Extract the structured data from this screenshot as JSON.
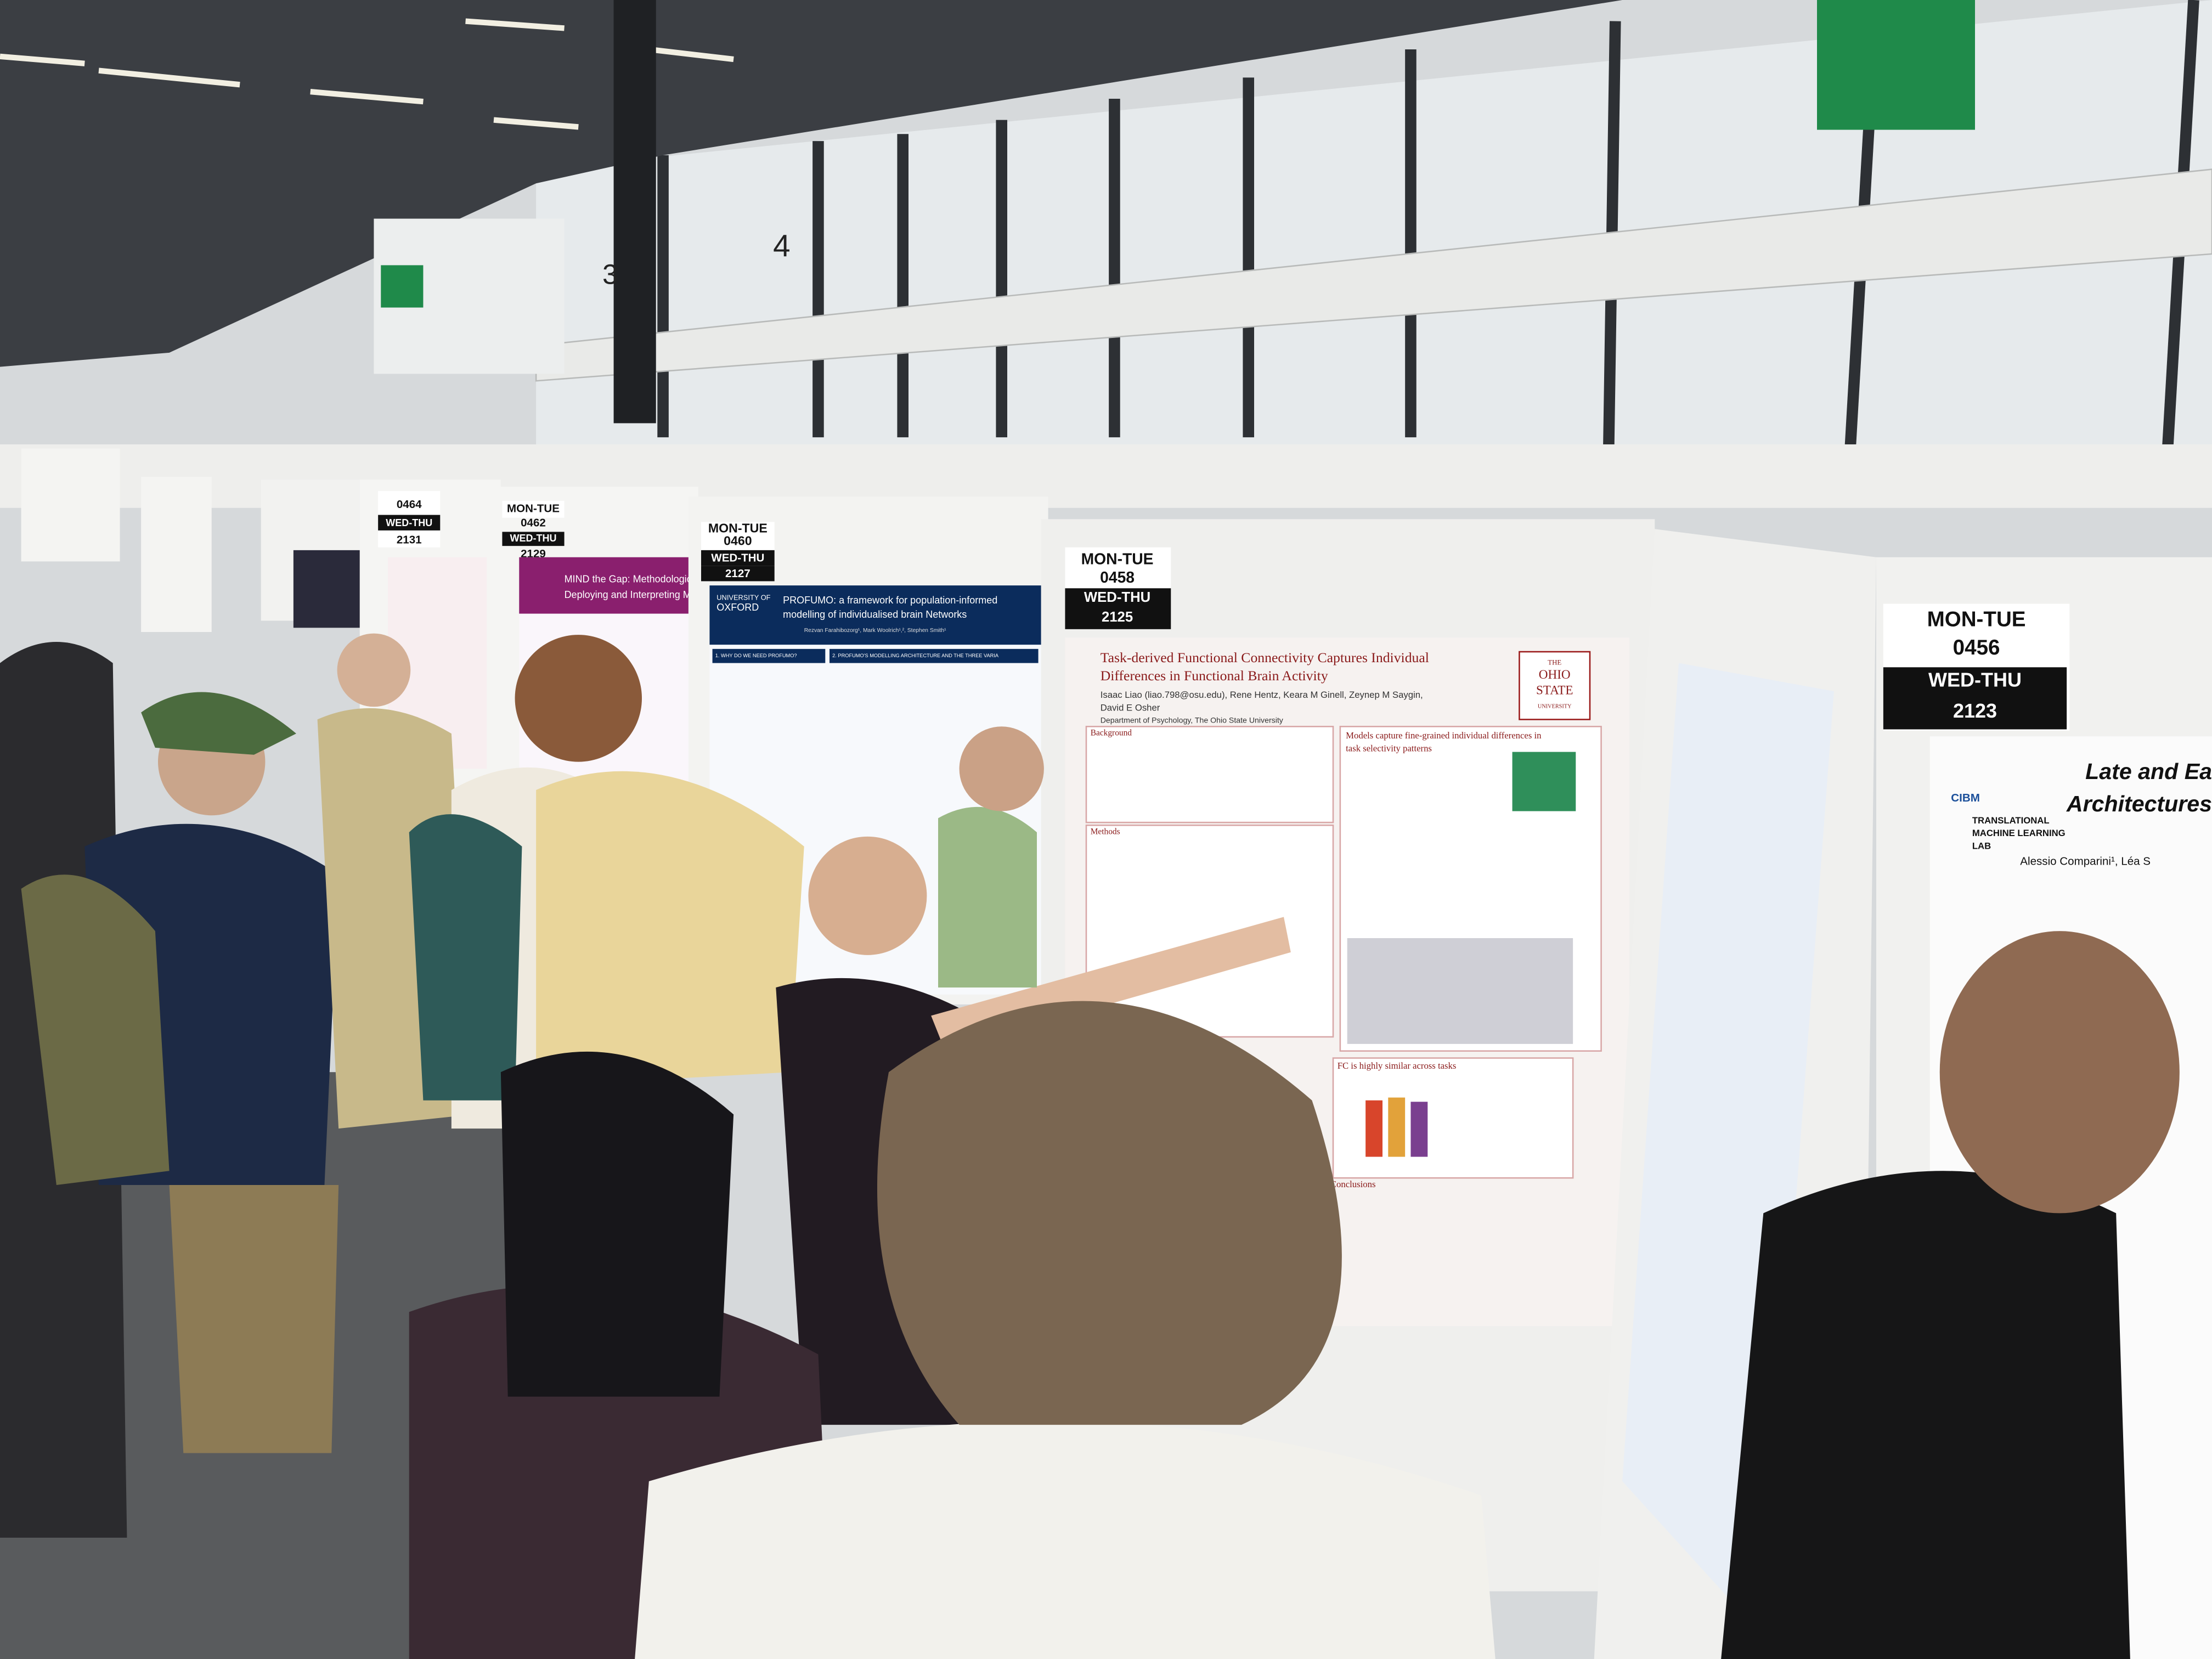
{
  "hall_numbers": [
    "3",
    "4"
  ],
  "boards": [
    {
      "sign": [
        "MON-TUE",
        "0456",
        "WED-THU",
        "2123"
      ],
      "poster": {
        "title": [
          "Late and Ea",
          "Architectures"
        ],
        "logo": "CIBM",
        "lab": [
          "TRANSLATIONAL",
          "MACHINE LEARNING",
          "LAB"
        ],
        "authors": "Alessio Comparini¹, Léa S"
      }
    },
    {
      "sign": [
        "MON-TUE",
        "0458",
        "WED-THU",
        "2125"
      ],
      "poster": {
        "title": [
          "Task-derived Functional Connectivity Captures Individual",
          "Differences in Functional Brain Activity"
        ],
        "authors": [
          "Isaac Liao (liao.798@osu.edu), Rene Hentz, Keara M Ginell, Zeynep M Saygin,",
          "David E Osher"
        ],
        "affiliation": "Department of Psychology, The Ohio State University",
        "logo": [
          "THE",
          "OHIO",
          "STATE",
          "UNIVERSITY"
        ],
        "sections": [
          "Background",
          "Methods",
          "Models capture fine-grained individual differences in",
          "task selectivity patterns",
          "FC is highly similar across tasks",
          "Conclusions"
        ]
      }
    },
    {
      "sign": [
        "MON-TUE",
        "0460",
        "WED-THU",
        "2127"
      ],
      "poster": {
        "title": [
          "PROFUMO: a framework for population-informed",
          "modelling of individualised brain Networks"
        ],
        "authors": "Rezvan Farahibozorg¹, Mark Woolrich¹,², Stephen Smith¹",
        "logo": [
          "UNIVERSITY OF",
          "OXFORD"
        ],
        "sections": [
          "1. WHY DO WE NEED PROFUMO?",
          "2. PROFUMO'S MODELLING ARCHITECTURE AND THE THREE VARIA"
        ]
      }
    },
    {
      "sign": [
        "MON-TUE",
        "0462",
        "WED-THU",
        "2129"
      ],
      "poster": {
        "title": [
          "MIND the Gap: Methodological Co",
          "Deploying and Interpreting MIND"
        ]
      }
    },
    {
      "sign": [
        "0464",
        "WED-THU",
        "2131"
      ]
    }
  ]
}
